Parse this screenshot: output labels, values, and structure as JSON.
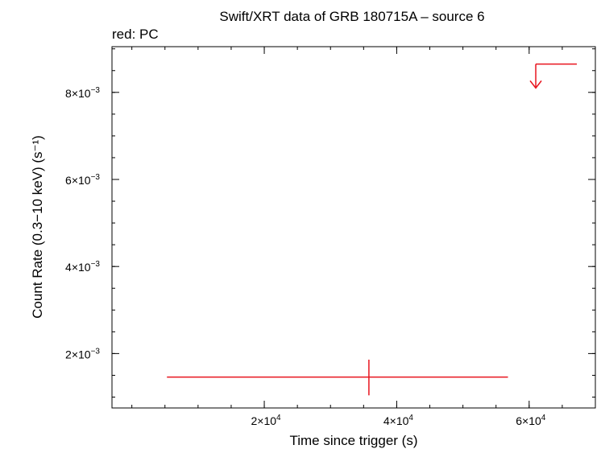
{
  "chart_data": {
    "type": "scatter",
    "title": "Swift/XRT data of GRB 180715A – source 6",
    "subtitle": "red: PC",
    "xlabel": "Time since trigger (s)",
    "ylabel": "Count Rate (0.3−10 keV) (s⁻¹)",
    "xlim": [
      -3000,
      70000
    ],
    "ylim": [
      0.00075,
      0.00905
    ],
    "x_ticks": [
      {
        "value": 20000,
        "mantissa": "2×10",
        "exp": "4"
      },
      {
        "value": 40000,
        "mantissa": "4×10",
        "exp": "4"
      },
      {
        "value": 60000,
        "mantissa": "6×10",
        "exp": "4"
      }
    ],
    "y_ticks": [
      {
        "value": 0.002,
        "mantissa": "2×10",
        "exp": "−3"
      },
      {
        "value": 0.004,
        "mantissa": "4×10",
        "exp": "−3"
      },
      {
        "value": 0.006,
        "mantissa": "6×10",
        "exp": "−3"
      },
      {
        "value": 0.008,
        "mantissa": "8×10",
        "exp": "−3"
      }
    ],
    "x_minor_step": 5000,
    "y_minor_step": 0.0005,
    "series": [
      {
        "name": "PC",
        "color": "#e8141e",
        "points": [
          {
            "x": 35800,
            "xerr_low": 30500,
            "xerr_high": 21000,
            "y": 0.00146,
            "yerr_low": 0.00042,
            "yerr_high": 0.0004
          }
        ],
        "upper_limits": [
          {
            "x": 63800,
            "x_low": 61000,
            "x_high": 67200,
            "y": 0.00865,
            "arrow_to": 0.0081
          }
        ]
      }
    ]
  }
}
